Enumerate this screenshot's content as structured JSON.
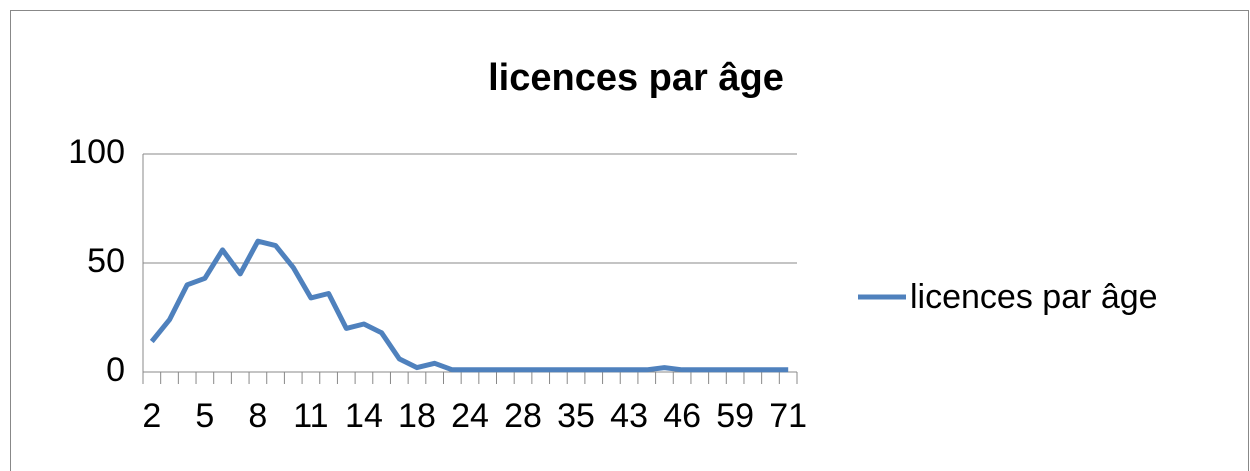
{
  "chart_data": {
    "type": "line",
    "title": "licences par âge",
    "categories": [
      "2",
      null,
      null,
      "5",
      null,
      null,
      "8",
      null,
      null,
      "11",
      null,
      null,
      "14",
      null,
      null,
      "18",
      null,
      null,
      "24",
      null,
      null,
      "28",
      null,
      null,
      "35",
      null,
      null,
      "43",
      null,
      null,
      "46",
      null,
      null,
      "59",
      null,
      null,
      "71"
    ],
    "series": [
      {
        "name": "licences par âge",
        "color": "#4f81bd",
        "values": [
          14,
          24,
          40,
          43,
          56,
          45,
          60,
          58,
          48,
          34,
          36,
          20,
          22,
          18,
          6,
          2,
          4,
          1,
          1,
          1,
          1,
          1,
          1,
          1,
          1,
          1,
          1,
          1,
          1,
          2,
          1,
          1,
          1,
          1,
          1,
          1,
          1
        ]
      }
    ],
    "ylim": [
      0,
      100
    ],
    "yticks": [
      0,
      50,
      100
    ],
    "grid": true,
    "legend": "right"
  }
}
